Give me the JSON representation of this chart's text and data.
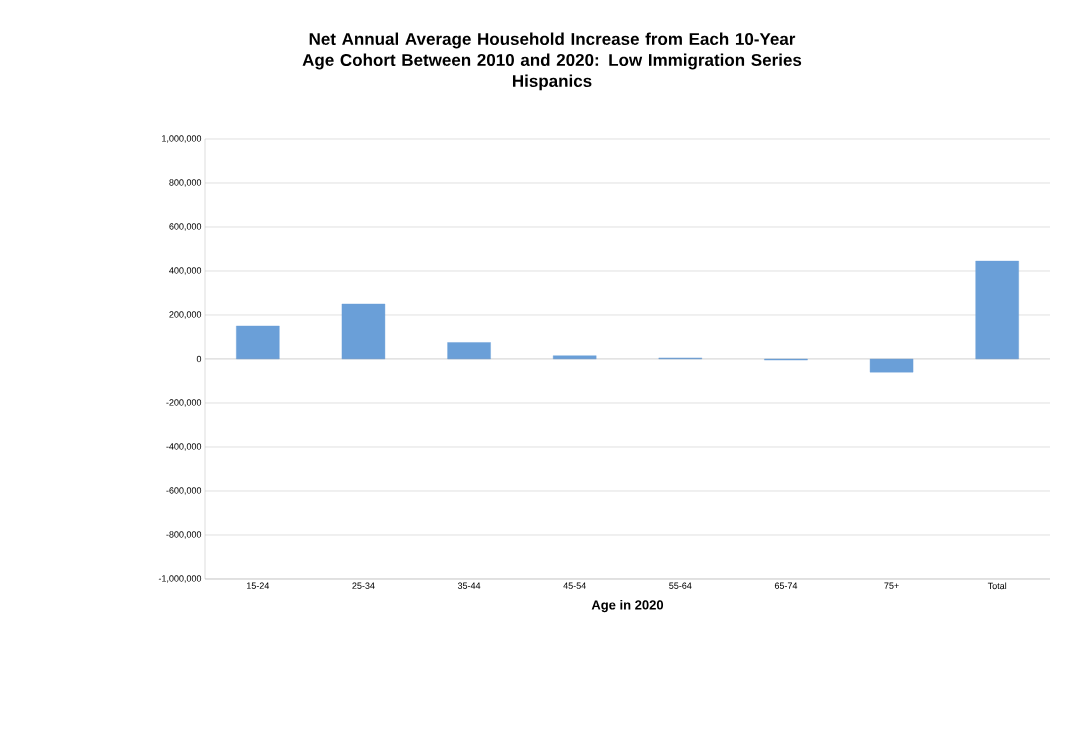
{
  "chart_data": {
    "type": "bar",
    "title": "Net Annual Average Household Increase from Each 10-Year Age Cohort Between 2010 and 2020: Low Immigration Series",
    "subtitle": "Hispanics",
    "xlabel": "Age in 2020",
    "categories": [
      "15-24",
      "25-34",
      "35-44",
      "45-54",
      "55-64",
      "65-74",
      "75+",
      "Total"
    ],
    "values": [
      150000,
      250000,
      75000,
      15000,
      5000,
      -5000,
      -60000,
      445000
    ],
    "color": "#6a9fd8",
    "ylim": [
      -1000000,
      1000000
    ],
    "yticks": [
      {
        "value": -1000000,
        "label": "-1,000,000"
      },
      {
        "value": -800000,
        "label": "-800,000"
      },
      {
        "value": -600000,
        "label": "-600,000"
      },
      {
        "value": -400000,
        "label": "-400,000"
      },
      {
        "value": -200000,
        "label": "-200,000"
      },
      {
        "value": 0,
        "label": "0"
      },
      {
        "value": 200000,
        "label": "200,000"
      },
      {
        "value": 400000,
        "label": "400,000"
      },
      {
        "value": 600000,
        "label": "600,000"
      },
      {
        "value": 800000,
        "label": "800,000"
      },
      {
        "value": 1000000,
        "label": "1,000,000"
      }
    ],
    "grid": "y"
  }
}
